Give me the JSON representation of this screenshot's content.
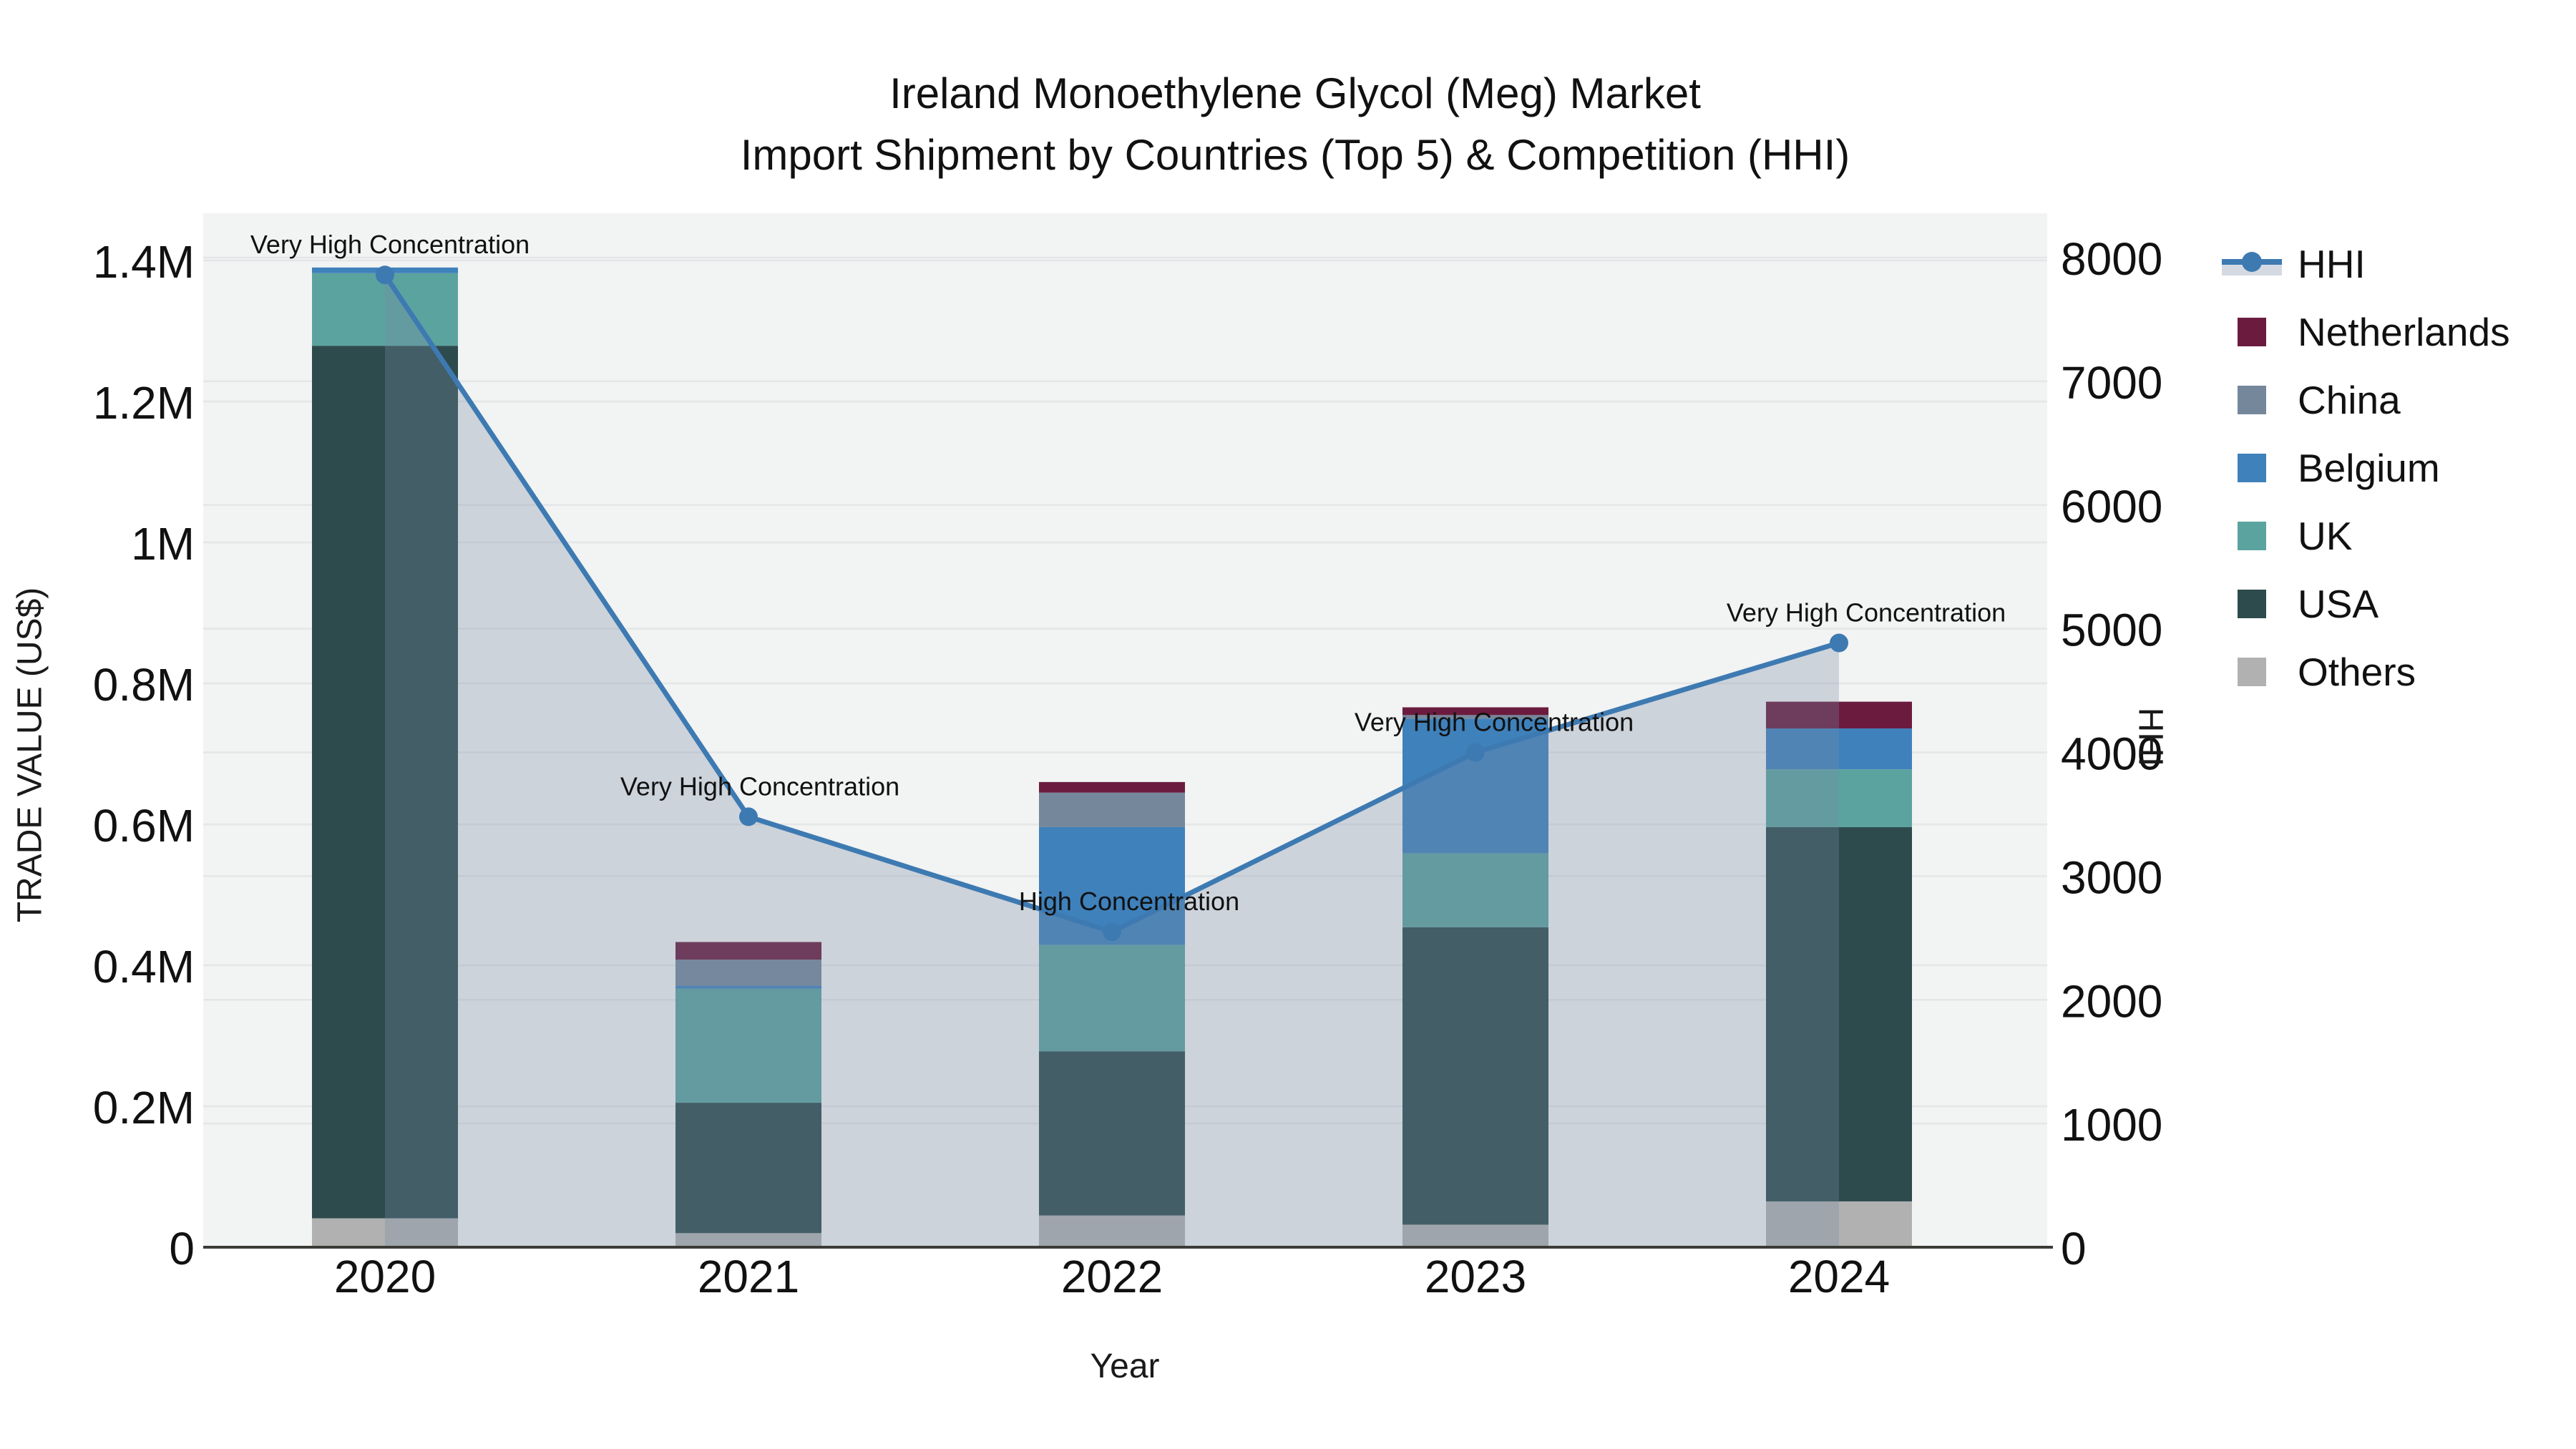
{
  "title": {
    "line1": "Ireland Monoethylene Glycol (Meg) Market",
    "line2": "Import Shipment by Countries (Top 5) & Competition (HHI)"
  },
  "axes": {
    "y_left_title": "TRADE VALUE (US$)",
    "y_right_title": "HHI",
    "x_title": "Year"
  },
  "legend": [
    {
      "label": "HHI",
      "type": "line",
      "color": "#3e7ab2",
      "band": "#d5dae2"
    },
    {
      "label": "Netherlands",
      "type": "box",
      "color": "#6b1c3e"
    },
    {
      "label": "China",
      "type": "box",
      "color": "#75879b"
    },
    {
      "label": "Belgium",
      "type": "box",
      "color": "#3f81bb"
    },
    {
      "label": "UK",
      "type": "box",
      "color": "#5ba39f"
    },
    {
      "label": "USA",
      "type": "box",
      "color": "#2d4b4d"
    },
    {
      "label": "Others",
      "type": "box",
      "color": "#b0b1b0"
    }
  ],
  "chart_data": {
    "type": "bar+line",
    "x_categories": [
      "2020",
      "2021",
      "2022",
      "2023",
      "2024"
    ],
    "stack_order_bottom_to_top": [
      "Others",
      "USA",
      "UK",
      "Belgium",
      "China",
      "Netherlands"
    ],
    "bar_series": [
      {
        "name": "Others",
        "color": "#b0b1b0",
        "values_usd": [
          41000,
          20000,
          45000,
          32000,
          65000
        ]
      },
      {
        "name": "USA",
        "color": "#2d4b4d",
        "values_usd": [
          1238000,
          185000,
          233000,
          422000,
          531000
        ]
      },
      {
        "name": "UK",
        "color": "#5ba39f",
        "values_usd": [
          103000,
          162000,
          151000,
          105000,
          82000
        ]
      },
      {
        "name": "Belgium",
        "color": "#3f81bb",
        "values_usd": [
          8000,
          4000,
          167000,
          191000,
          58000
        ]
      },
      {
        "name": "China",
        "color": "#75879b",
        "values_usd": [
          0,
          37000,
          49000,
          5000,
          0
        ]
      },
      {
        "name": "Netherlands",
        "color": "#6b1c3e",
        "values_usd": [
          0,
          25000,
          15000,
          11000,
          38000
        ]
      }
    ],
    "line_series": {
      "name": "HHI",
      "yaxis": "right",
      "color": "#3e7ab2",
      "area_fill": "rgba(120,138,167,0.30)",
      "values": [
        7860,
        3480,
        2550,
        4000,
        4885
      ]
    },
    "annotations": [
      {
        "x": "2020",
        "text": "Very High Concentration"
      },
      {
        "x": "2021",
        "text": "Very High Concentration"
      },
      {
        "x": "2022",
        "text": "High Concentration"
      },
      {
        "x": "2023",
        "text": "Very High Concentration"
      },
      {
        "x": "2024",
        "text": "Very High Concentration"
      }
    ],
    "y_left": {
      "label": "TRADE VALUE (US$)",
      "tick_labels": [
        "0",
        "0.2M",
        "0.4M",
        "0.6M",
        "0.8M",
        "1M",
        "1.2M",
        "1.4M"
      ],
      "tick_values_usd": [
        0,
        200000,
        400000,
        600000,
        800000,
        1000000,
        1200000,
        1400000
      ],
      "range_usd": [
        0,
        1468000
      ]
    },
    "y_right": {
      "label": "HHI",
      "tick_labels": [
        "0",
        "1000",
        "2000",
        "3000",
        "4000",
        "5000",
        "6000",
        "7000",
        "8000"
      ],
      "tick_values": [
        0,
        1000,
        2000,
        3000,
        4000,
        5000,
        6000,
        7000,
        8000
      ],
      "range": [
        0,
        8390
      ]
    },
    "x_label": "Year",
    "grid": true,
    "legend_position": "right"
  },
  "style_colors": {
    "plot_background": "#f2f3f3",
    "gridline": "#e4e6e8",
    "axis_line": "#3b3b38",
    "text": "#111111",
    "annotation_text": "#111111"
  }
}
